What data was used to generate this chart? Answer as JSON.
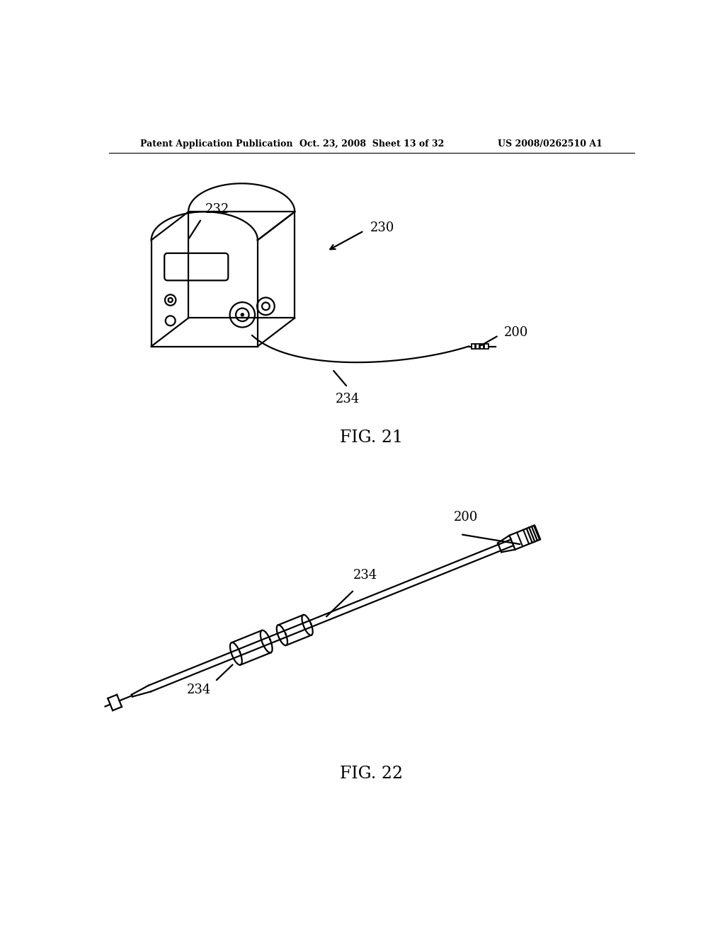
{
  "background_color": "#ffffff",
  "header_left": "Patent Application Publication",
  "header_center": "Oct. 23, 2008  Sheet 13 of 32",
  "header_right": "US 2008/0262510 A1",
  "fig21_label": "FIG. 21",
  "fig22_label": "FIG. 22",
  "label_232": "232",
  "label_230": "230",
  "label_234_fig21": "234",
  "label_200_fig21": "200",
  "label_200_fig22": "200",
  "label_234_fig22_left": "234",
  "label_234_fig22_mid": "234"
}
